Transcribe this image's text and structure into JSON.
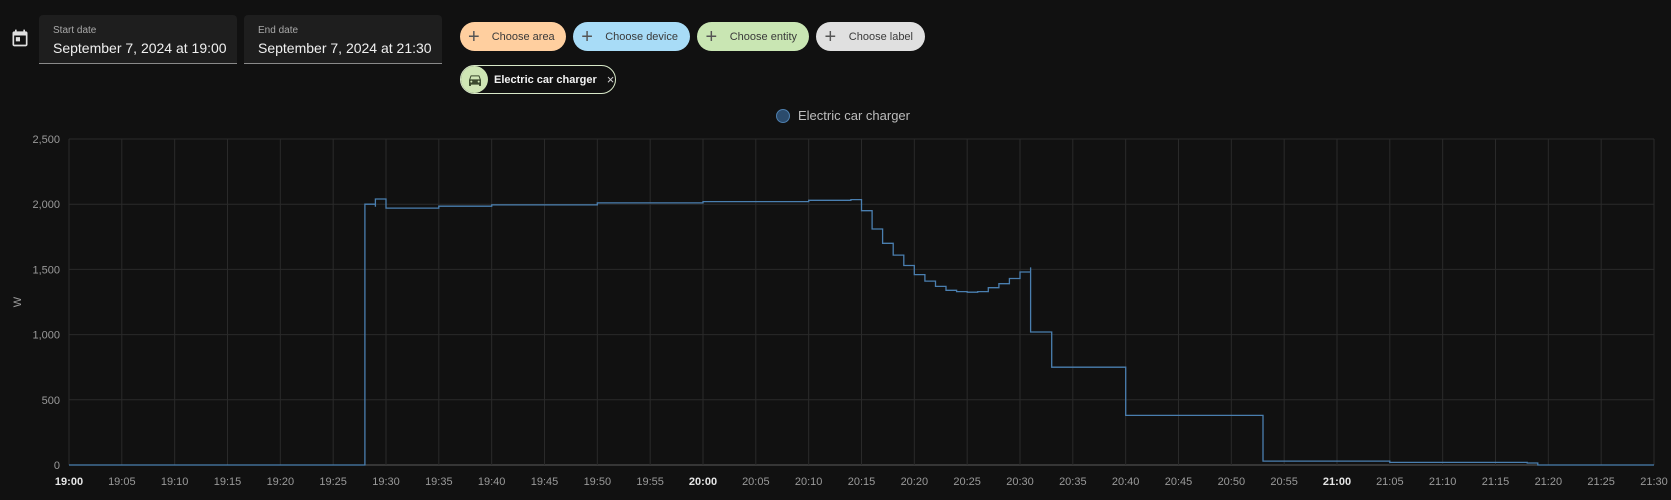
{
  "header": {
    "start_date": {
      "label": "Start date",
      "value": "September 7, 2024 at 19:00"
    },
    "end_date": {
      "label": "End date",
      "value": "September 7, 2024 at 21:30"
    },
    "chips": [
      {
        "label": "Choose area",
        "icon": "plus-icon",
        "color": "#ffcf9f"
      },
      {
        "label": "Choose device",
        "icon": "plus-icon",
        "color": "#a8dcf7"
      },
      {
        "label": "Choose entity",
        "icon": "plus-icon",
        "color": "#c9e6b3"
      },
      {
        "label": "Choose label",
        "icon": "plus-icon",
        "color": "#e0e0e0"
      }
    ],
    "selected_entity": {
      "name": "Electric car charger",
      "icon": "car-charger-icon",
      "remove_glyph": "×"
    }
  },
  "colors": {
    "background": "#111111",
    "series_line": "#4a7fb0",
    "grid": "#2a2a2a"
  },
  "chart_data": {
    "type": "line",
    "legend": {
      "placement": "top-center",
      "entries": [
        "Electric car charger"
      ]
    },
    "ylabel": "W",
    "xlabel": "",
    "ylim": [
      0,
      2500
    ],
    "yticks": [
      "0",
      "500",
      "1,000",
      "1,500",
      "2,000",
      "2,500"
    ],
    "ytick_values": [
      0,
      500,
      1000,
      1500,
      2000,
      2500
    ],
    "xlim": [
      "19:00",
      "21:30"
    ],
    "xticks": [
      "19:00",
      "19:05",
      "19:10",
      "19:15",
      "19:20",
      "19:25",
      "19:30",
      "19:35",
      "19:40",
      "19:45",
      "19:50",
      "19:55",
      "20:00",
      "20:05",
      "20:10",
      "20:15",
      "20:20",
      "20:25",
      "20:30",
      "20:35",
      "20:40",
      "20:45",
      "20:50",
      "20:55",
      "21:00",
      "21:05",
      "21:10",
      "21:15",
      "21:20",
      "21:25",
      "21:30"
    ],
    "xticks_bold": [
      "19:00",
      "20:00",
      "21:00"
    ],
    "grid": true,
    "step": true,
    "series": [
      {
        "name": "Electric car charger",
        "color": "#4a7fb0",
        "points": [
          [
            "19:00",
            0
          ],
          [
            "19:28",
            0
          ],
          [
            "19:28",
            100
          ],
          [
            "19:28",
            2000
          ],
          [
            "19:29",
            1980
          ],
          [
            "19:29",
            2040
          ],
          [
            "19:30",
            1970
          ],
          [
            "19:35",
            1985
          ],
          [
            "19:40",
            1995
          ],
          [
            "19:50",
            2010
          ],
          [
            "20:00",
            2020
          ],
          [
            "20:10",
            2030
          ],
          [
            "20:14",
            2035
          ],
          [
            "20:15",
            1950
          ],
          [
            "20:16",
            1810
          ],
          [
            "20:17",
            1700
          ],
          [
            "20:18",
            1610
          ],
          [
            "20:19",
            1530
          ],
          [
            "20:20",
            1460
          ],
          [
            "20:21",
            1410
          ],
          [
            "20:22",
            1370
          ],
          [
            "20:23",
            1340
          ],
          [
            "20:24",
            1330
          ],
          [
            "20:25",
            1325
          ],
          [
            "20:26",
            1330
          ],
          [
            "20:27",
            1360
          ],
          [
            "20:28",
            1390
          ],
          [
            "20:29",
            1430
          ],
          [
            "20:30",
            1480
          ],
          [
            "20:31",
            1515
          ],
          [
            "20:31",
            1360
          ],
          [
            "20:31",
            1020
          ],
          [
            "20:33",
            1020
          ],
          [
            "20:33",
            750
          ],
          [
            "20:39",
            750
          ],
          [
            "20:40",
            380
          ],
          [
            "20:52",
            380
          ],
          [
            "20:53",
            30
          ],
          [
            "21:05",
            20
          ],
          [
            "21:18",
            15
          ],
          [
            "21:19",
            0
          ],
          [
            "21:30",
            0
          ]
        ]
      }
    ]
  }
}
